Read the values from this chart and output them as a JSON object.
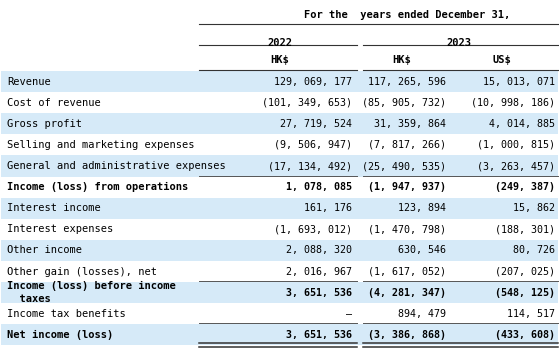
{
  "title": "For the  years ended December 31,",
  "rows": [
    {
      "label": "Revenue",
      "v2022": "129, 069, 177",
      "v2023hk": "117, 265, 596",
      "v2023us": "15, 013, 071",
      "bold": false,
      "shaded": true,
      "underline": false,
      "double_underline": false
    },
    {
      "label": "Cost of revenue",
      "v2022": "(101, 349, 653)",
      "v2023hk": "(85, 905, 732)",
      "v2023us": "(10, 998, 186)",
      "bold": false,
      "shaded": false,
      "underline": false,
      "double_underline": false
    },
    {
      "label": "Gross profit",
      "v2022": "27, 719, 524",
      "v2023hk": "31, 359, 864",
      "v2023us": "4, 014, 885",
      "bold": false,
      "shaded": true,
      "underline": false,
      "double_underline": false
    },
    {
      "label": "Selling and marketing expenses",
      "v2022": "(9, 506, 947)",
      "v2023hk": "(7, 817, 266)",
      "v2023us": "(1, 000, 815)",
      "bold": false,
      "shaded": false,
      "underline": false,
      "double_underline": false
    },
    {
      "label": "General and administrative expenses",
      "v2022": "(17, 134, 492)",
      "v2023hk": "(25, 490, 535)",
      "v2023us": "(3, 263, 457)",
      "bold": false,
      "shaded": true,
      "underline": true,
      "double_underline": false
    },
    {
      "label": "Income (loss) from operations",
      "v2022": "1, 078, 085",
      "v2023hk": "(1, 947, 937)",
      "v2023us": "(249, 387)",
      "bold": true,
      "shaded": false,
      "underline": false,
      "double_underline": false
    },
    {
      "label": "Interest income",
      "v2022": "161, 176",
      "v2023hk": "123, 894",
      "v2023us": "15, 862",
      "bold": false,
      "shaded": true,
      "underline": false,
      "double_underline": false
    },
    {
      "label": "Interest expenses",
      "v2022": "(1, 693, 012)",
      "v2023hk": "(1, 470, 798)",
      "v2023us": "(188, 301)",
      "bold": false,
      "shaded": false,
      "underline": false,
      "double_underline": false
    },
    {
      "label": "Other income",
      "v2022": "2, 088, 320",
      "v2023hk": "630, 546",
      "v2023us": "80, 726",
      "bold": false,
      "shaded": true,
      "underline": false,
      "double_underline": false
    },
    {
      "label": "Other gain (losses), net",
      "v2022": "2, 016, 967",
      "v2023hk": "(1, 617, 052)",
      "v2023us": "(207, 025)",
      "bold": false,
      "shaded": false,
      "underline": true,
      "double_underline": false
    },
    {
      "label": "Income (loss) before income\n  taxes",
      "v2022": "3, 651, 536",
      "v2023hk": "(4, 281, 347)",
      "v2023us": "(548, 125)",
      "bold": true,
      "shaded": true,
      "underline": false,
      "double_underline": false
    },
    {
      "label": "Income tax benefits",
      "v2022": "—",
      "v2023hk": "894, 479",
      "v2023us": "114, 517",
      "bold": false,
      "shaded": false,
      "underline": true,
      "double_underline": false
    },
    {
      "label": "Net income (loss)",
      "v2022": "3, 651, 536",
      "v2023hk": "(3, 386, 868)",
      "v2023us": "(433, 608)",
      "bold": true,
      "shaded": true,
      "underline": false,
      "double_underline": true
    }
  ],
  "bg_color": "#ffffff",
  "shaded_color": "#d6eaf8",
  "font_size": 7.5
}
